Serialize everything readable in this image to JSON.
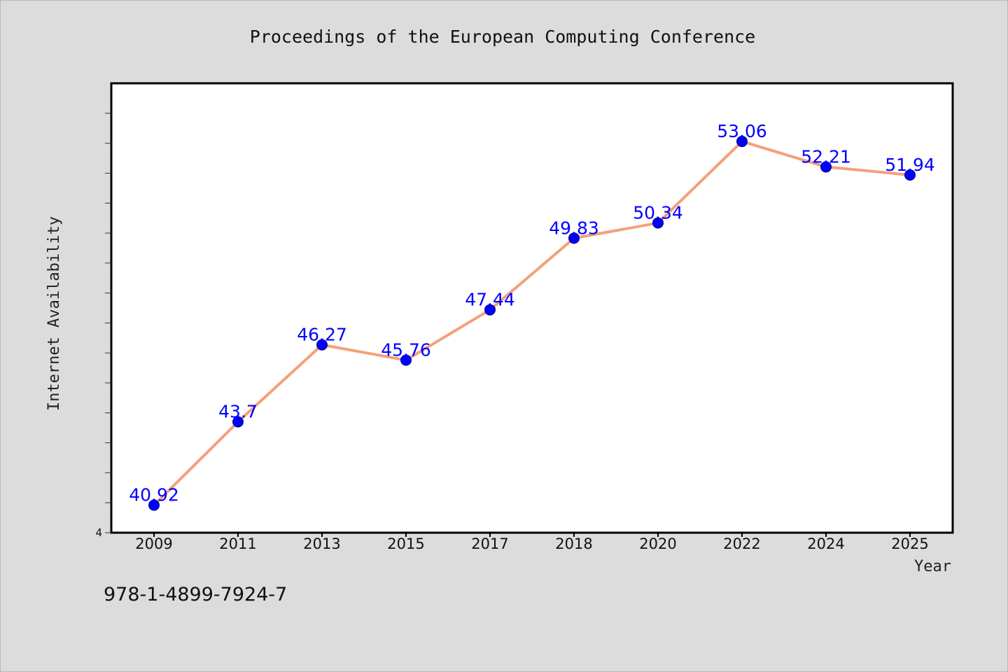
{
  "chart_data": {
    "type": "line",
    "title": "Proceedings of the European Computing Conference",
    "xlabel": "Year",
    "ylabel": "Internet Availability",
    "categories": [
      "2009",
      "2011",
      "2013",
      "2015",
      "2017",
      "2018",
      "2020",
      "2022",
      "2024",
      "2025"
    ],
    "series": [
      {
        "values": [
          40.92,
          43.7,
          46.27,
          45.76,
          47.44,
          49.83,
          50.34,
          53.06,
          52.21,
          51.94
        ]
      }
    ],
    "ylim": [
      40,
      55
    ],
    "y_tick_step": 1,
    "y_tick_labels_shown": [
      "4"
    ],
    "grid": false,
    "legend": "none",
    "line_color": "#f4a07c",
    "marker_color": "#0000ff",
    "label_color": "#0000ff",
    "background_color": "#dcdcdc",
    "plot_background_color": "#ffffff"
  },
  "footer": {
    "isbn": "978-1-4899-7924-7"
  }
}
